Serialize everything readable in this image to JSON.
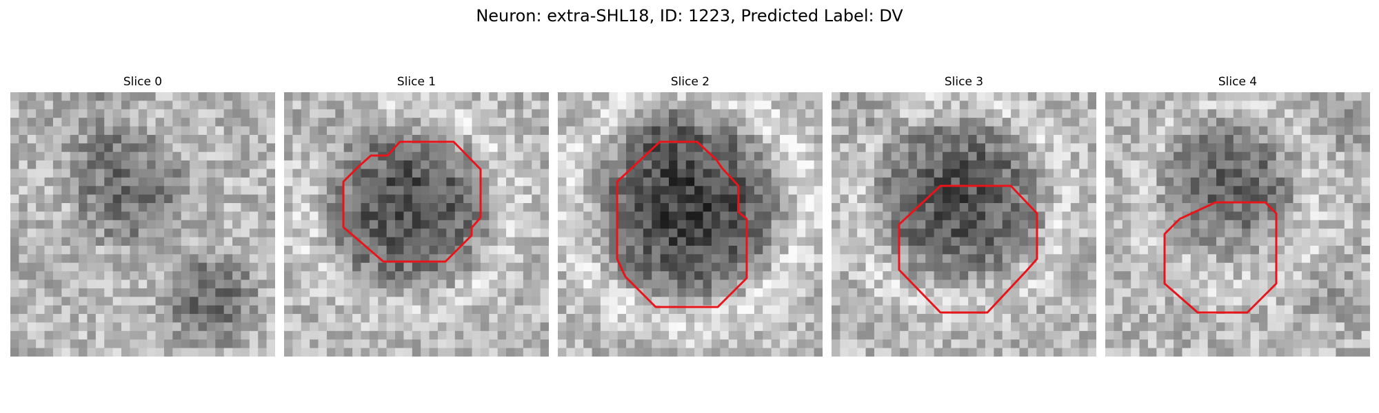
{
  "figure": {
    "title": "Neuron: extra-SHL18, ID: 1223, Predicted Label: DV"
  },
  "slices": [
    {
      "title": "Slice 0",
      "has_contour": false
    },
    {
      "title": "Slice 1",
      "has_contour": true
    },
    {
      "title": "Slice 2",
      "has_contour": true
    },
    {
      "title": "Slice 3",
      "has_contour": true
    },
    {
      "title": "Slice 4",
      "has_contour": true
    }
  ],
  "colors": {
    "contour": "#e8141a",
    "background": "#ffffff"
  }
}
